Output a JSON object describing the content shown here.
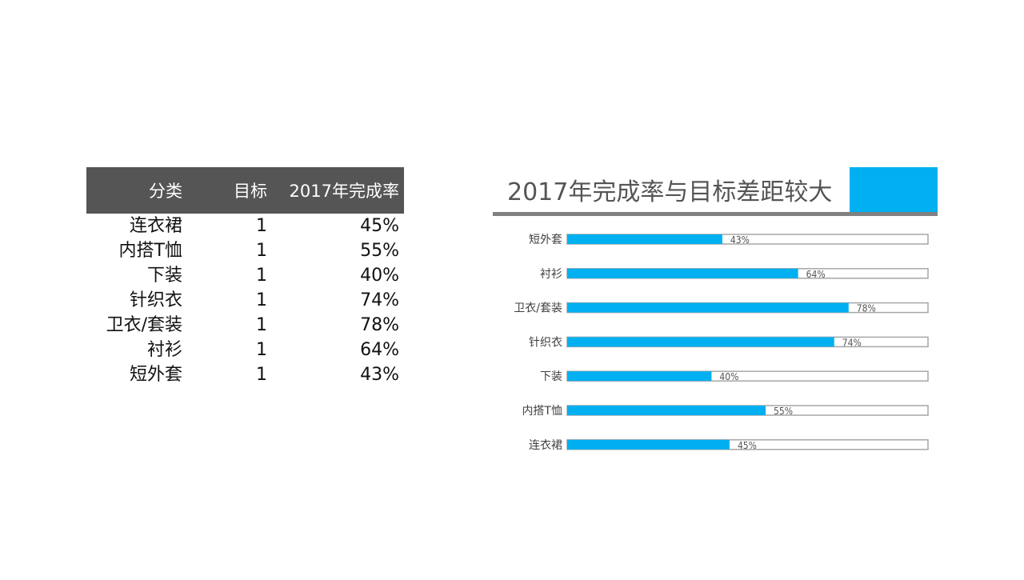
{
  "table": {
    "headers": [
      "分类",
      "目标",
      "2017年完成率"
    ],
    "rows": [
      [
        "连衣裙",
        "1",
        "45%"
      ],
      [
        "内搭T恤",
        "1",
        "55%"
      ],
      [
        "下装",
        "1",
        "40%"
      ],
      [
        "针织衣",
        "1",
        "74%"
      ],
      [
        "卫衣/套装",
        "1",
        "78%"
      ],
      [
        "衬衫",
        "1",
        "64%"
      ],
      [
        "短外套",
        "1",
        "43%"
      ]
    ]
  },
  "colors": {
    "accent": "#00b0f0",
    "header_bg": "#555555",
    "track_border": "#a6a6a6"
  },
  "chart_data": {
    "type": "bar",
    "orientation": "horizontal",
    "title": "2017年完成率与目标差距较大",
    "categories": [
      "短外套",
      "衬衫",
      "卫衣/套装",
      "针织衣",
      "下装",
      "内搭T恤",
      "连衣裙"
    ],
    "values": [
      0.43,
      0.64,
      0.78,
      0.74,
      0.4,
      0.55,
      0.45
    ],
    "value_labels": [
      "43%",
      "64%",
      "78%",
      "74%",
      "40%",
      "55%",
      "45%"
    ],
    "target": 1,
    "xlim": [
      0,
      1
    ],
    "grid": false,
    "legend": "none"
  }
}
